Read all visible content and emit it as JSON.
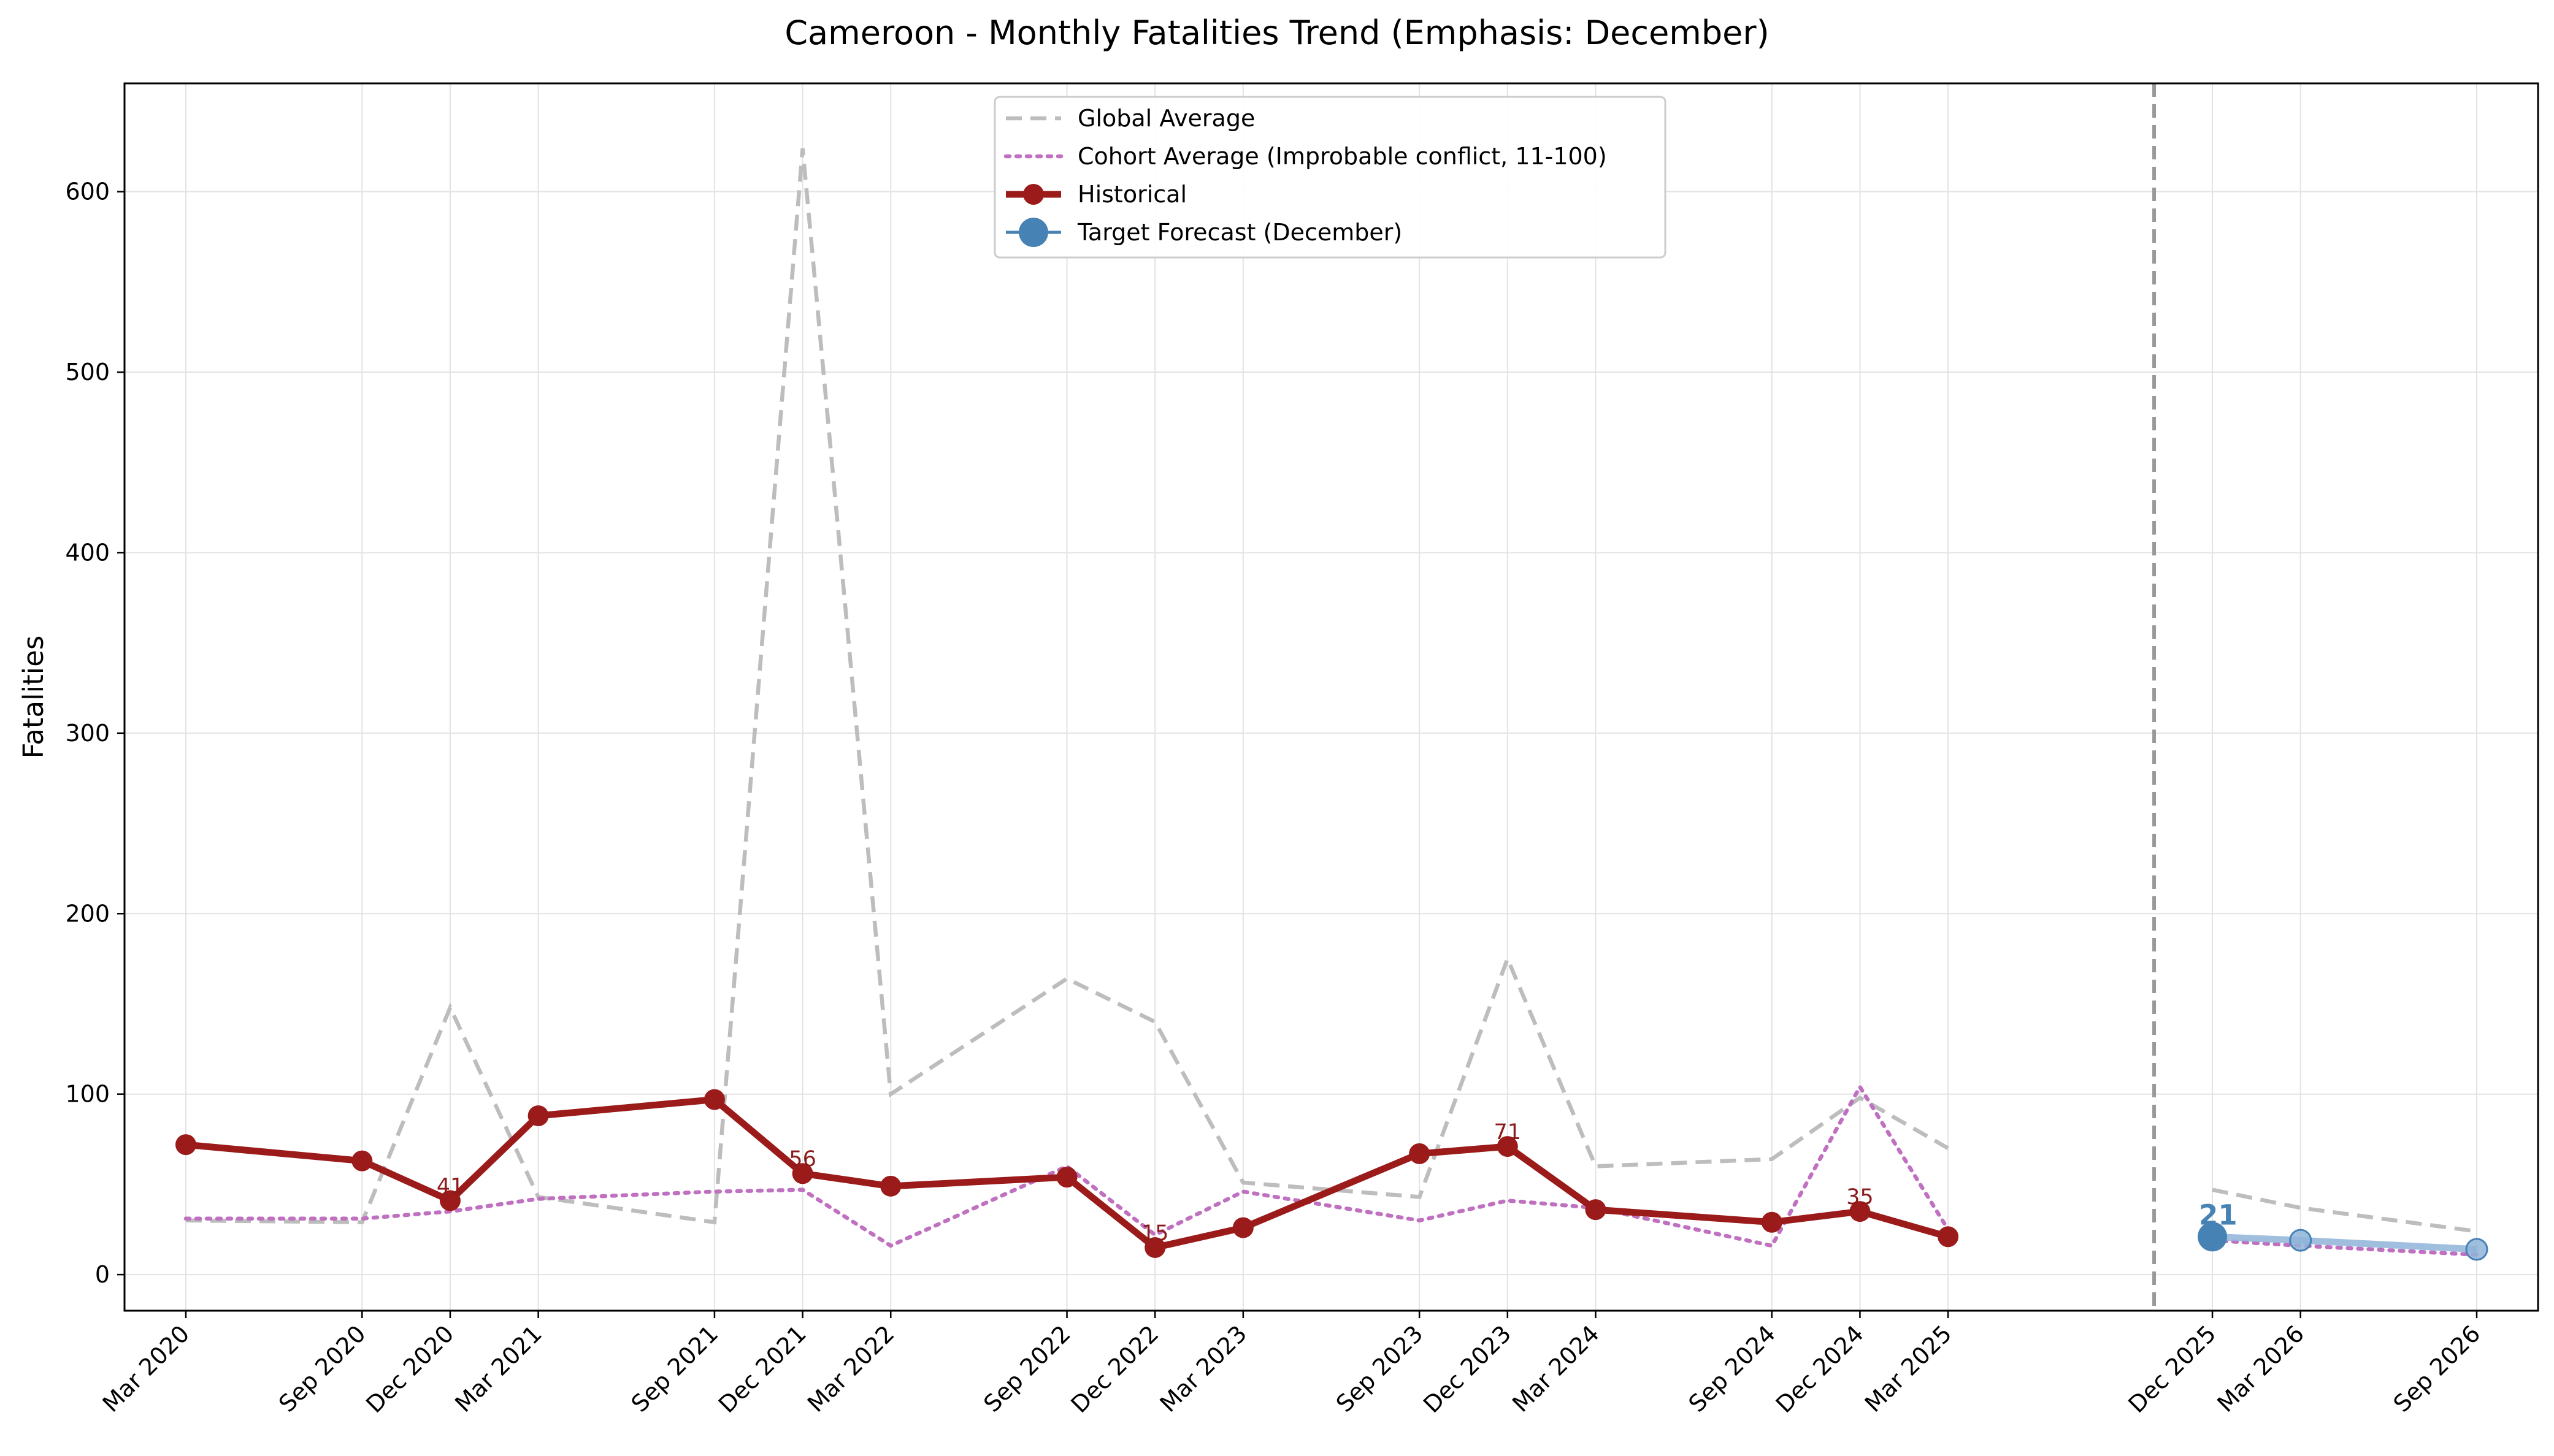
{
  "chart_data": {
    "type": "line",
    "title": "Cameroon - Monthly Fatalities Trend (Emphasis: December)",
    "xlabel": "",
    "ylabel": "Fatalities",
    "ylim": [
      -20,
      660
    ],
    "y_ticks": [
      0,
      100,
      200,
      300,
      400,
      500,
      600
    ],
    "x_ticks": [
      "Mar 2020",
      "Sep 2020",
      "Dec 2020",
      "Mar 2021",
      "Sep 2021",
      "Dec 2021",
      "Mar 2022",
      "Sep 2022",
      "Dec 2022",
      "Mar 2023",
      "Sep 2023",
      "Dec 2023",
      "Mar 2024",
      "Sep 2024",
      "Dec 2024",
      "Mar 2025",
      "Dec 2025",
      "Mar 2026",
      "Sep 2026"
    ],
    "grid": true,
    "legend_position": "upper center",
    "forecast_divider": "Dec 2025",
    "colors": {
      "global": "#bdbdbd",
      "cohort": "#c070c0",
      "historical": "#9b1b1b",
      "forecast": "#4682b4",
      "forecast_light": "#8fb4d9",
      "divider": "#999999"
    },
    "series": [
      {
        "name": "Global Average",
        "style": "dashed",
        "x": [
          "Mar 2020",
          "Sep 2020",
          "Dec 2020",
          "Mar 2021",
          "Sep 2021",
          "Dec 2021",
          "Mar 2022",
          "Sep 2022",
          "Dec 2022",
          "Mar 2023",
          "Sep 2023",
          "Dec 2023",
          "Mar 2024",
          "Sep 2024",
          "Dec 2024",
          "Mar 2025"
        ],
        "values": [
          30,
          29,
          148,
          43,
          29,
          624,
          100,
          164,
          140,
          51,
          43,
          175,
          60,
          64,
          98,
          70
        ]
      },
      {
        "name": "Global Average (forecast)",
        "style": "dashed",
        "x": [
          "Dec 2025",
          "Mar 2026",
          "Sep 2026"
        ],
        "values": [
          47,
          37,
          24
        ]
      },
      {
        "name": "Cohort Average (Improbable conflict, 11-100)",
        "style": "dotted",
        "x": [
          "Mar 2020",
          "Sep 2020",
          "Dec 2020",
          "Mar 2021",
          "Sep 2021",
          "Dec 2021",
          "Mar 2022",
          "Sep 2022",
          "Dec 2022",
          "Mar 2023",
          "Sep 2023",
          "Dec 2023",
          "Mar 2024",
          "Sep 2024",
          "Dec 2024",
          "Mar 2025"
        ],
        "values": [
          31,
          31,
          35,
          42,
          46,
          47,
          16,
          60,
          22,
          46,
          30,
          41,
          37,
          16,
          104,
          25
        ]
      },
      {
        "name": "Cohort Average (forecast)",
        "style": "dotted",
        "x": [
          "Dec 2025",
          "Mar 2026",
          "Sep 2026"
        ],
        "values": [
          19,
          16,
          11
        ]
      },
      {
        "name": "Historical",
        "style": "solid-marker",
        "x": [
          "Mar 2020",
          "Sep 2020",
          "Dec 2020",
          "Mar 2021",
          "Sep 2021",
          "Dec 2021",
          "Mar 2022",
          "Sep 2022",
          "Dec 2022",
          "Mar 2023",
          "Sep 2023",
          "Dec 2023",
          "Mar 2024",
          "Sep 2024",
          "Dec 2024",
          "Mar 2025"
        ],
        "values": [
          72,
          63,
          41,
          88,
          97,
          56,
          49,
          54,
          15,
          26,
          67,
          71,
          36,
          29,
          35,
          21
        ]
      },
      {
        "name": "Target Forecast (December)",
        "style": "forecast",
        "x": [
          "Dec 2025",
          "Mar 2026",
          "Sep 2026"
        ],
        "values": [
          21,
          19,
          14
        ]
      }
    ],
    "annotations": [
      {
        "x": "Dec 2020",
        "value": 41,
        "text": "41"
      },
      {
        "x": "Dec 2021",
        "value": 56,
        "text": "56"
      },
      {
        "x": "Dec 2022",
        "value": 15,
        "text": "15"
      },
      {
        "x": "Dec 2023",
        "value": 71,
        "text": "71"
      },
      {
        "x": "Dec 2024",
        "value": 35,
        "text": "35"
      }
    ],
    "forecast_annotation": {
      "x": "Dec 2025",
      "value": 21,
      "text": "21"
    },
    "legend": [
      {
        "label": "Global Average",
        "key": "global"
      },
      {
        "label": "Cohort Average (Improbable conflict, 11-100)",
        "key": "cohort"
      },
      {
        "label": "Historical",
        "key": "historical"
      },
      {
        "label": "Target Forecast (December)",
        "key": "forecast"
      }
    ]
  }
}
